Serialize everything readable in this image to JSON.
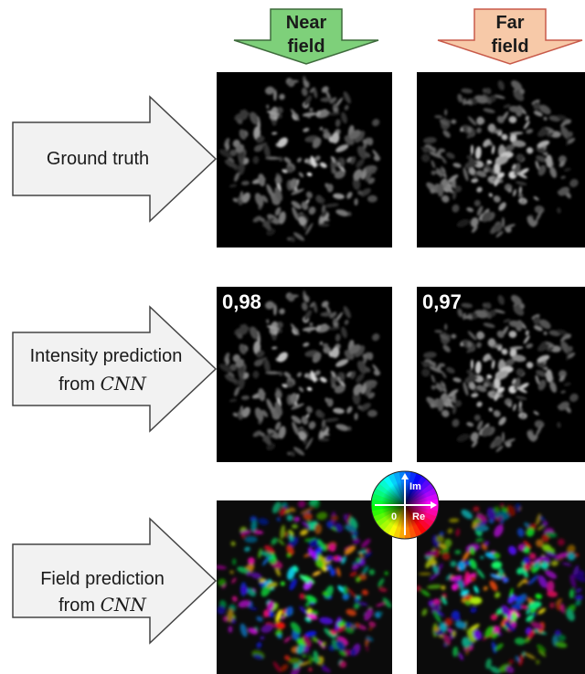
{
  "columns": {
    "near": {
      "label_line1": "Near",
      "label_line2": "field",
      "fill": "#7ed07a"
    },
    "far": {
      "label_line1": "Far",
      "label_line2": "field",
      "fill": "#f7c9a8"
    }
  },
  "rows": {
    "ground_truth": {
      "label": "Ground truth"
    },
    "intensity": {
      "label_line1": "Intensity prediction",
      "label_prefix": "from ",
      "label_math": "CNN"
    },
    "field": {
      "label_line1": "Field prediction",
      "label_prefix": "from ",
      "label_math": "CNN"
    }
  },
  "scores": {
    "near": "0,98",
    "far": "0,97"
  },
  "legend": {
    "im": "Im",
    "re": "Re",
    "zero": "0"
  }
}
